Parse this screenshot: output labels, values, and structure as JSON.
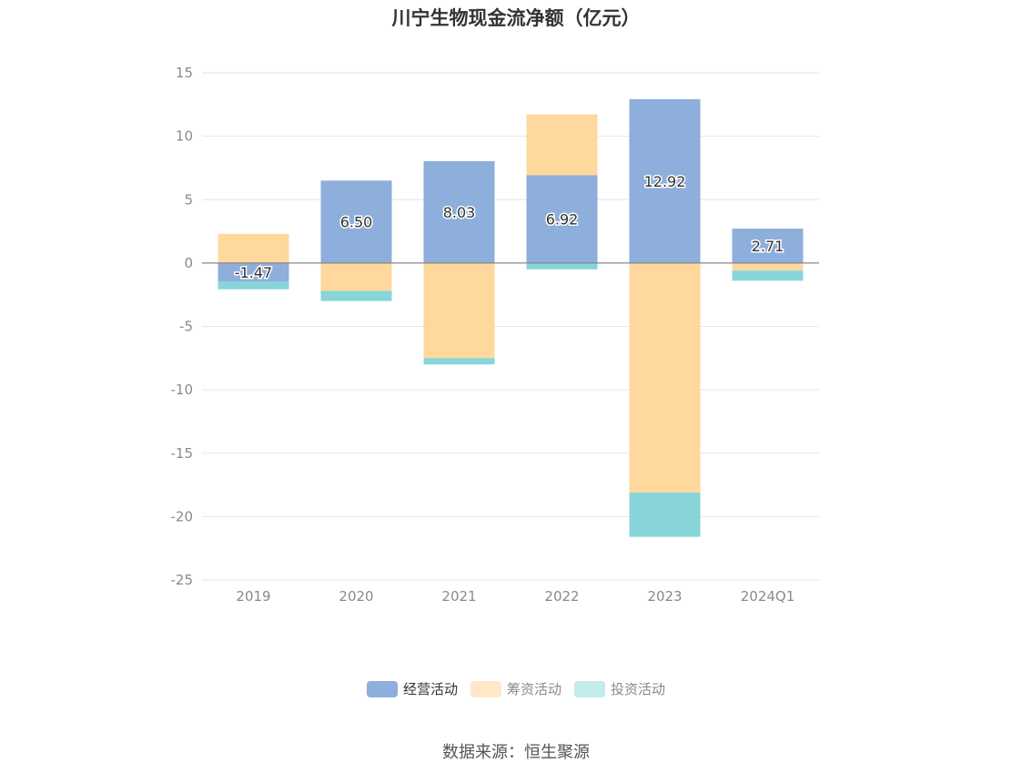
{
  "title": "川宁生物现金流净额（亿元）",
  "source": "数据来源：恒生聚源",
  "colors": {
    "operating": "#8eaedb",
    "financing": "#fed89c",
    "investing": "#87d5d9",
    "axis": "#999999",
    "grid": "#e3e6ee",
    "zero_line": "#888888",
    "tick_text": "#8a8a8a"
  },
  "chart_data": {
    "type": "bar",
    "stacked": true,
    "title": "川宁生物现金流净额（亿元）",
    "categories": [
      "2019",
      "2020",
      "2021",
      "2022",
      "2023",
      "2024Q1"
    ],
    "series": [
      {
        "name": "经营活动",
        "values": [
          -1.47,
          6.5,
          8.03,
          6.92,
          12.92,
          2.71
        ],
        "label_values": [
          "-1.47",
          "6.50",
          "8.03",
          "6.92",
          "12.92",
          "2.71"
        ]
      },
      {
        "name": "筹资活动",
        "values": [
          2.3,
          -2.2,
          -7.5,
          4.8,
          -18.1,
          -0.6
        ]
      },
      {
        "name": "投资活动",
        "values": [
          -0.6,
          -0.8,
          -0.5,
          -0.5,
          -3.5,
          -0.8
        ]
      }
    ],
    "ylim": [
      -25,
      15
    ],
    "yticks": [
      15,
      10,
      5,
      0,
      -5,
      -10,
      -15,
      -20,
      -25
    ],
    "grid": true,
    "legend_position": "bottom"
  }
}
